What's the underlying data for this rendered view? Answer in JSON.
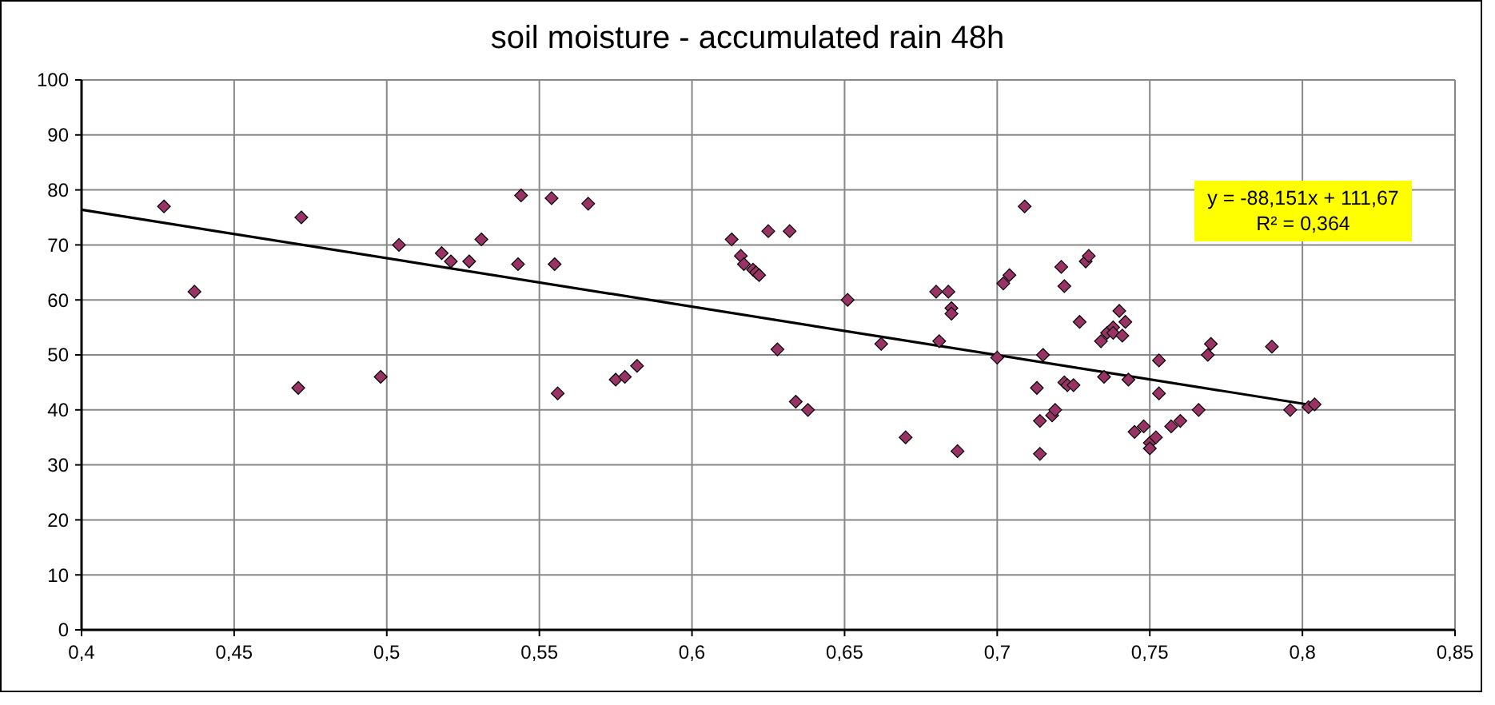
{
  "chart_data": {
    "type": "scatter",
    "title": "soil moisture - accumulated rain 48h",
    "xlim": [
      0.4,
      0.85
    ],
    "ylim": [
      0,
      100
    ],
    "xticks": [
      {
        "value": 0.4,
        "label": "0,4"
      },
      {
        "value": 0.45,
        "label": "0,45"
      },
      {
        "value": 0.5,
        "label": "0,5"
      },
      {
        "value": 0.55,
        "label": "0,55"
      },
      {
        "value": 0.6,
        "label": "0,6"
      },
      {
        "value": 0.65,
        "label": "0,65"
      },
      {
        "value": 0.7,
        "label": "0,7"
      },
      {
        "value": 0.75,
        "label": "0,75"
      },
      {
        "value": 0.8,
        "label": "0,8"
      },
      {
        "value": 0.85,
        "label": "0,85"
      }
    ],
    "yticks": [
      0,
      10,
      20,
      30,
      40,
      50,
      60,
      70,
      80,
      90,
      100
    ],
    "grid": true,
    "annotations": [
      "y = -88,151x + 111,67\nR² = 0,364"
    ],
    "series": [
      {
        "color": "#993366",
        "marker": "diamond",
        "x": [
          0.427,
          0.437,
          0.471,
          0.472,
          0.498,
          0.504,
          0.518,
          0.521,
          0.527,
          0.531,
          0.543,
          0.544,
          0.554,
          0.555,
          0.556,
          0.566,
          0.575,
          0.578,
          0.582,
          0.613,
          0.616,
          0.617,
          0.62,
          0.621,
          0.622,
          0.625,
          0.628,
          0.632,
          0.634,
          0.638,
          0.651,
          0.662,
          0.67,
          0.68,
          0.681,
          0.684,
          0.685,
          0.685,
          0.687,
          0.7,
          0.702,
          0.704,
          0.709,
          0.713,
          0.714,
          0.714,
          0.715,
          0.718,
          0.719,
          0.721,
          0.722,
          0.722,
          0.723,
          0.725,
          0.727,
          0.729,
          0.73,
          0.734,
          0.735,
          0.736,
          0.738,
          0.738,
          0.74,
          0.741,
          0.742,
          0.743,
          0.745,
          0.748,
          0.75,
          0.75,
          0.752,
          0.753,
          0.753,
          0.757,
          0.76,
          0.766,
          0.769,
          0.77,
          0.79,
          0.796,
          0.802,
          0.804
        ],
        "values": [
          77,
          61.5,
          44,
          75,
          46,
          70,
          68.5,
          67,
          67,
          71,
          66.5,
          79,
          78.5,
          66.5,
          43,
          77.5,
          45.5,
          46,
          48,
          71,
          68,
          66.5,
          65.5,
          65,
          64.5,
          72.5,
          51,
          72.5,
          41.5,
          40,
          60,
          52,
          35,
          61.5,
          52.5,
          61.5,
          58.5,
          57.5,
          32.5,
          49.5,
          63,
          64.5,
          77,
          44,
          38,
          32,
          50,
          39,
          40,
          66,
          62.5,
          45,
          44.5,
          44.5,
          56,
          67,
          68,
          52.5,
          46,
          54,
          55,
          54,
          58,
          53.5,
          56,
          45.5,
          36,
          37,
          34,
          33,
          35,
          49,
          43,
          37,
          38,
          40,
          50,
          52,
          51.5,
          40,
          40.5,
          41
        ]
      },
      {
        "type": "line",
        "color": "#000000",
        "line_style": "solid",
        "x": [
          0.4,
          0.805
        ],
        "values": [
          76.4,
          40.7
        ]
      }
    ]
  }
}
